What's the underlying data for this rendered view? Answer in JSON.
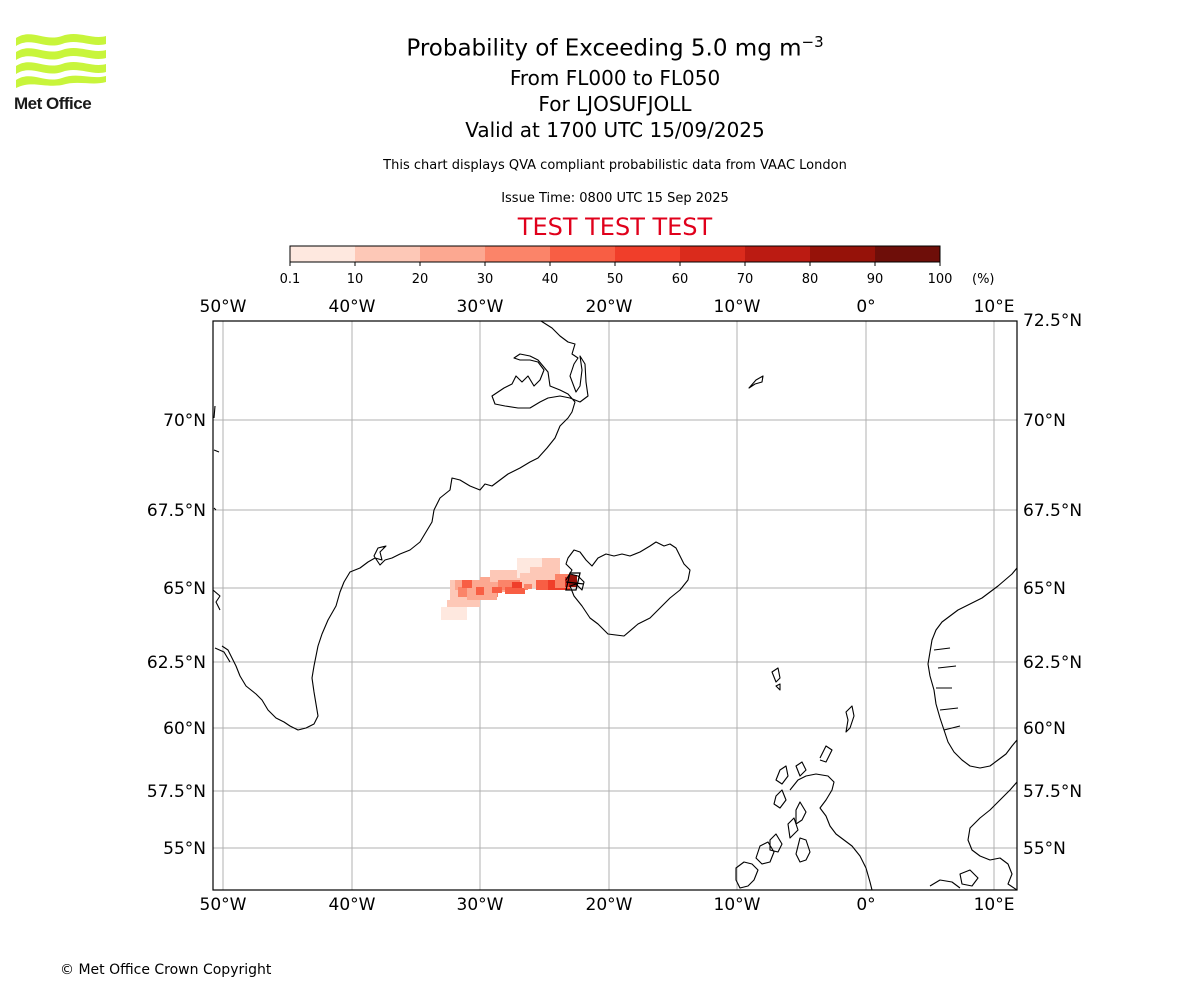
{
  "logo": {
    "text": "Met Office",
    "stripe_color": "#c8f53b"
  },
  "title": {
    "line1": "Probability of Exceeding 5.0 mg m",
    "line1_sup": "−3",
    "line2": "From FL000 to FL050",
    "line3": "For LJOSUFJOLL",
    "line4": "Valid at 1700 UTC 15/09/2025"
  },
  "subtitle": "This chart displays QVA compliant probabilistic data from VAAC London",
  "issue_time": "Issue Time: 0800 UTC 15 Sep 2025",
  "test_banner": "TEST TEST TEST",
  "colorbar": {
    "ticks": [
      "0.1",
      "10",
      "20",
      "30",
      "40",
      "50",
      "60",
      "70",
      "80",
      "90",
      "100"
    ],
    "unit": "(%)",
    "colors": [
      "#fee8df",
      "#fdc8b7",
      "#fca891",
      "#fb8469",
      "#f85e44",
      "#f03e2a",
      "#da2b1c",
      "#bb1b12",
      "#961209",
      "#6e0e09"
    ]
  },
  "map": {
    "lon_labels": [
      "50°W",
      "40°W",
      "30°W",
      "20°W",
      "10°W",
      "0°",
      "10°E"
    ],
    "lat_labels_left": [
      "70°N",
      "67.5°N",
      "65°N",
      "62.5°N",
      "60°N",
      "57.5°N",
      "55°N"
    ],
    "lat_labels_right": [
      "72.5°N",
      "70°N",
      "67.5°N",
      "65°N",
      "62.5°N",
      "60°N",
      "57.5°N",
      "55°N"
    ],
    "plume_color_scale": "probability (%)"
  },
  "copyright": "© Met Office Crown Copyright"
}
